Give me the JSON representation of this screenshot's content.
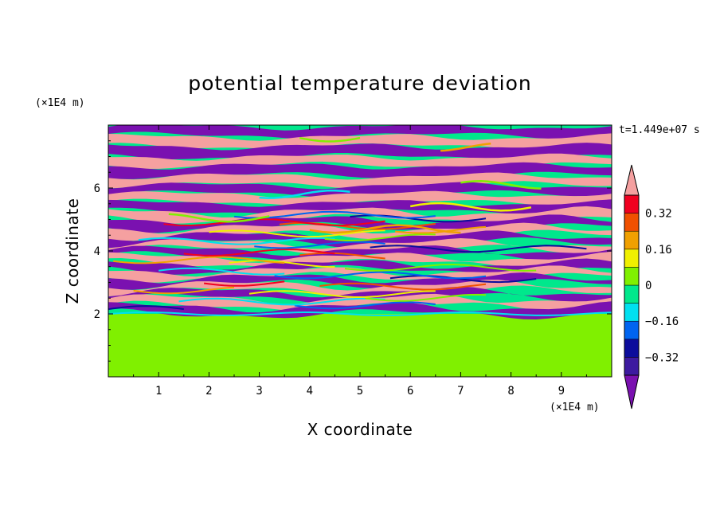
{
  "chart_data": {
    "type": "heatmap",
    "title": "potential temperature deviation",
    "xlabel": "X coordinate",
    "ylabel": "Z coordinate",
    "x_unit": "(×1E4 m)",
    "y_unit": "(×1E4 m)",
    "time_label": "t=1.449e+07 s",
    "xlim": [
      0,
      10
    ],
    "ylim": [
      0,
      8
    ],
    "x_ticks": [
      "1",
      "2",
      "3",
      "4",
      "5",
      "6",
      "7",
      "8",
      "9"
    ],
    "y_ticks": [
      "2",
      "4",
      "6"
    ],
    "x_tick_values": [
      1,
      2,
      3,
      4,
      5,
      6,
      7,
      8,
      9
    ],
    "y_tick_values": [
      2,
      4,
      6
    ],
    "colorbar": {
      "levels": [
        -0.4,
        -0.32,
        -0.24,
        -0.16,
        -0.08,
        0,
        0.08,
        0.16,
        0.24,
        0.32,
        0.4
      ],
      "labels": [
        "0.32",
        "0.16",
        "0",
        "−0.16",
        "−0.32"
      ],
      "label_values": [
        0.32,
        0.16,
        0,
        -0.16,
        -0.32
      ],
      "colors": [
        "#7a11b0",
        "#3d1aa0",
        "#0c0c9c",
        "#0064f0",
        "#00e0f0",
        "#00e88c",
        "#80f000",
        "#f0f000",
        "#f0a000",
        "#f05000",
        "#f00020",
        "#f5a0a0"
      ],
      "over_color": "#f5a0a0",
      "under_color": "#7a11b0"
    },
    "regions": {
      "lower_layer_top_z": 2.0,
      "lower_layer_value": 0.02,
      "lower_layer_patch_value": 0.06
    }
  }
}
